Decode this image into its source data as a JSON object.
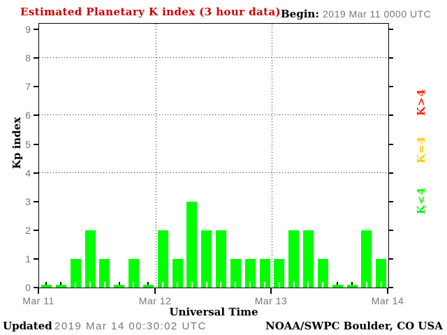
{
  "header": {
    "title": "Estimated Planetary K index (3 hour data)",
    "begin_label": "Begin:",
    "begin_value": "2019 Mar 11 0000 UTC"
  },
  "chart_data": {
    "type": "bar",
    "title": "Estimated Planetary K index (3 hour data)",
    "begin": "2019 Mar 11 0000 UTC",
    "xlabel": "Universal Time",
    "ylabel": "Kp index",
    "ylim": [
      0,
      9
    ],
    "yticks": [
      0,
      1,
      2,
      3,
      4,
      5,
      6,
      7,
      8,
      9
    ],
    "gridlines_at": [
      4,
      6,
      8
    ],
    "grid": "dotted horizontal lines at Kp 4/6/8, dotted vertical lines at day boundaries",
    "day_labels": [
      "Mar 11",
      "Mar 12",
      "Mar 13",
      "Mar 14"
    ],
    "bars_per_day": 8,
    "hours_per_bar": 3,
    "values": [
      0,
      0,
      1,
      2,
      1,
      0,
      1,
      0,
      2,
      1,
      3,
      2,
      2,
      1,
      1,
      1,
      1,
      2,
      2,
      1,
      0,
      0,
      2,
      1
    ],
    "bar_color_rule": {
      "below_4": "#00ff00",
      "equal_4": "#ffcc00",
      "above_4": "#ff2200"
    },
    "legend": [
      {
        "label": "K>4",
        "color": "#ff2200"
      },
      {
        "label": "K=4",
        "color": "#ffcc00"
      },
      {
        "label": "K<4",
        "color": "#00ff00"
      }
    ],
    "legend_position": "right side, rotated 90 degrees"
  },
  "footer": {
    "updated_label": "Updated",
    "updated_value": "2019 Mar 14 00:30:02 UTC",
    "source": "NOAA/SWPC Boulder, CO USA"
  },
  "colors": {
    "title": "#cc0000",
    "bar_green": "#00ff00",
    "legend_red": "#ff2200",
    "legend_yellow": "#ffcc00",
    "legend_green": "#00ff00",
    "muted_text": "#777777",
    "axis": "#000000",
    "background": "#ffffff"
  }
}
